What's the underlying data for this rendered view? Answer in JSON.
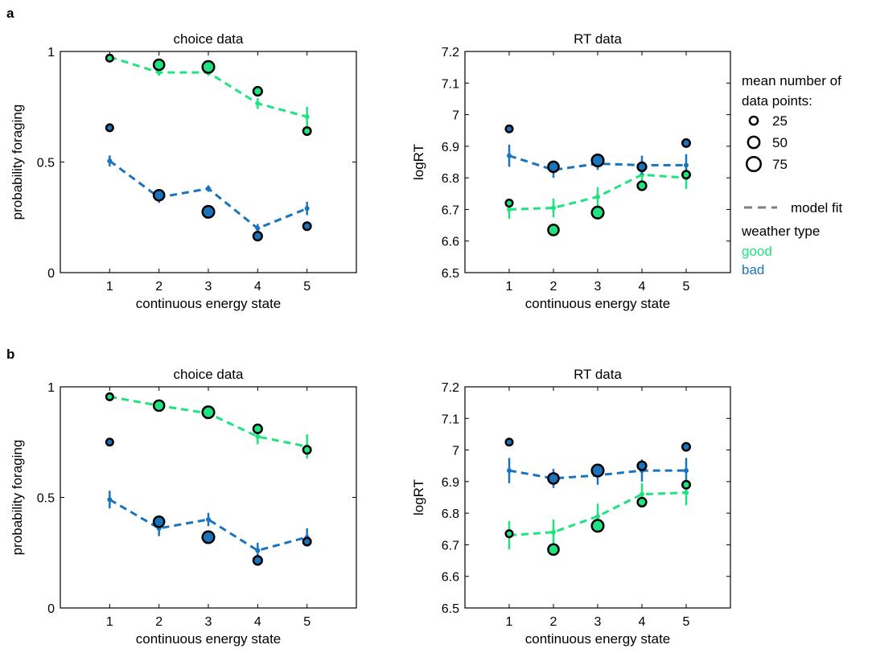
{
  "colors": {
    "good": "#1ee37f",
    "bad": "#1a73bd",
    "model": "#7f7f7f",
    "axis": "#000000"
  },
  "legend": {
    "size_title_1": "mean number of",
    "size_title_2": "data points:",
    "sizes": [
      {
        "label": "25",
        "n": 25
      },
      {
        "label": "50",
        "n": 50
      },
      {
        "label": "75",
        "n": 75
      }
    ],
    "model_fit": "model fit",
    "weather_title": "weather type",
    "good": "good",
    "bad": "bad"
  },
  "chart_data": [
    {
      "panel": "a",
      "type": "scatter",
      "title": "choice data",
      "xlabel": "continuous energy state",
      "ylabel": "probability foraging",
      "xlim": [
        0,
        6
      ],
      "ylim": [
        0,
        1
      ],
      "xticks": [
        1,
        2,
        3,
        4,
        5
      ],
      "yticks": [
        0,
        0.5,
        1
      ],
      "yticklabels": [
        "0",
        "0.5",
        "1"
      ],
      "series": [
        {
          "name": "good",
          "x": [
            1,
            2,
            3,
            4,
            5
          ],
          "data": [
            0.97,
            0.94,
            0.93,
            0.82,
            0.64
          ],
          "n": [
            18,
            42,
            52,
            28,
            22
          ],
          "fit": [
            0.975,
            0.905,
            0.905,
            0.765,
            0.705
          ],
          "err": [
            0.01,
            0.015,
            0.015,
            0.025,
            0.045
          ]
        },
        {
          "name": "bad",
          "x": [
            1,
            2,
            3,
            4,
            5
          ],
          "data": [
            0.655,
            0.35,
            0.275,
            0.165,
            0.21
          ],
          "n": [
            18,
            42,
            52,
            28,
            22
          ],
          "fit": [
            0.505,
            0.34,
            0.38,
            0.2,
            0.29
          ],
          "err": [
            0.025,
            0.025,
            0.015,
            0.02,
            0.03
          ]
        }
      ]
    },
    {
      "panel": "a",
      "type": "scatter",
      "title": "RT data",
      "xlabel": "continuous energy state",
      "ylabel": "logRT",
      "xlim": [
        0,
        6
      ],
      "ylim": [
        6.5,
        7.2
      ],
      "xticks": [
        1,
        2,
        3,
        4,
        5
      ],
      "yticks": [
        6.5,
        6.6,
        6.7,
        6.8,
        6.9,
        7.0,
        7.1,
        7.2
      ],
      "yticklabels": [
        "6.5",
        "6.6",
        "6.7",
        "6.8",
        "6.9",
        "7",
        "7.1",
        "7.2"
      ],
      "series": [
        {
          "name": "good",
          "x": [
            1,
            2,
            3,
            4,
            5
          ],
          "data": [
            6.72,
            6.635,
            6.69,
            6.775,
            6.81
          ],
          "n": [
            18,
            42,
            52,
            28,
            22
          ],
          "fit": [
            6.7,
            6.705,
            6.74,
            6.81,
            6.8
          ],
          "err": [
            0.03,
            0.03,
            0.03,
            0.025,
            0.035
          ]
        },
        {
          "name": "bad",
          "x": [
            1,
            2,
            3,
            4,
            5
          ],
          "data": [
            6.955,
            6.835,
            6.855,
            6.835,
            6.91
          ],
          "n": [
            18,
            42,
            52,
            28,
            22
          ],
          "fit": [
            6.87,
            6.825,
            6.845,
            6.84,
            6.84
          ],
          "err": [
            0.035,
            0.025,
            0.02,
            0.03,
            0.035
          ]
        }
      ]
    },
    {
      "panel": "b",
      "type": "scatter",
      "title": "choice data",
      "xlabel": "continuous energy state",
      "ylabel": "probability foraging",
      "xlim": [
        0,
        6
      ],
      "ylim": [
        0,
        1
      ],
      "xticks": [
        1,
        2,
        3,
        4,
        5
      ],
      "yticks": [
        0,
        0.5,
        1
      ],
      "yticklabels": [
        "0",
        "0.5",
        "1"
      ],
      "series": [
        {
          "name": "good",
          "x": [
            1,
            2,
            3,
            4,
            5
          ],
          "data": [
            0.955,
            0.915,
            0.885,
            0.81,
            0.715
          ],
          "n": [
            18,
            42,
            52,
            28,
            22
          ],
          "fit": [
            0.955,
            0.915,
            0.88,
            0.775,
            0.73
          ],
          "err": [
            0.02,
            0.02,
            0.02,
            0.035,
            0.055
          ]
        },
        {
          "name": "bad",
          "x": [
            1,
            2,
            3,
            4,
            5
          ],
          "data": [
            0.75,
            0.39,
            0.32,
            0.215,
            0.3
          ],
          "n": [
            18,
            42,
            52,
            28,
            22
          ],
          "fit": [
            0.49,
            0.36,
            0.4,
            0.26,
            0.32
          ],
          "err": [
            0.04,
            0.035,
            0.03,
            0.035,
            0.04
          ]
        }
      ]
    },
    {
      "panel": "b",
      "type": "scatter",
      "title": "RT data",
      "xlabel": "continuous energy state",
      "ylabel": "logRT",
      "xlim": [
        0,
        6
      ],
      "ylim": [
        6.5,
        7.2
      ],
      "xticks": [
        1,
        2,
        3,
        4,
        5
      ],
      "yticks": [
        6.5,
        6.6,
        6.7,
        6.8,
        6.9,
        7.0,
        7.1,
        7.2
      ],
      "yticklabels": [
        "6.5",
        "6.6",
        "6.7",
        "6.8",
        "6.9",
        "7",
        "7.1",
        "7.2"
      ],
      "series": [
        {
          "name": "good",
          "x": [
            1,
            2,
            3,
            4,
            5
          ],
          "data": [
            6.735,
            6.685,
            6.76,
            6.835,
            6.89
          ],
          "n": [
            18,
            42,
            52,
            28,
            22
          ],
          "fit": [
            6.73,
            6.74,
            6.79,
            6.86,
            6.865
          ],
          "err": [
            0.045,
            0.04,
            0.04,
            0.035,
            0.04
          ]
        },
        {
          "name": "bad",
          "x": [
            1,
            2,
            3,
            4,
            5
          ],
          "data": [
            7.025,
            6.91,
            6.935,
            6.95,
            7.01
          ],
          "n": [
            18,
            42,
            52,
            28,
            22
          ],
          "fit": [
            6.935,
            6.91,
            6.92,
            6.935,
            6.935
          ],
          "err": [
            0.04,
            0.03,
            0.03,
            0.035,
            0.04
          ]
        }
      ]
    }
  ],
  "panel_labels": [
    "a",
    "b"
  ]
}
